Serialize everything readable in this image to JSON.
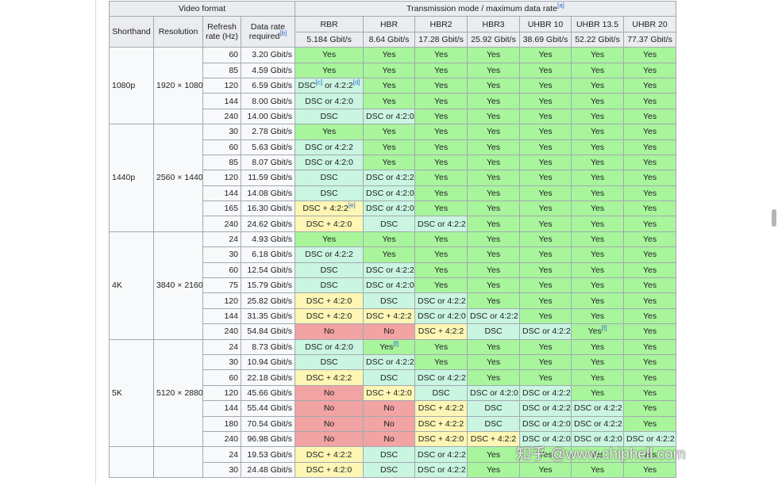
{
  "table": {
    "header": {
      "video_format": "Video format",
      "transmission": [
        "Transmission mode / maximum data rate",
        "[a]"
      ],
      "shorthand": "Shorthand",
      "resolution": "Resolution",
      "refresh": "Refresh rate (Hz)",
      "data_rate": [
        "Data rate required",
        "[b]"
      ],
      "modes": [
        "RBR",
        "HBR",
        "HBR2",
        "HBR3",
        "UHBR 10",
        "UHBR 13.5",
        "UHBR 20"
      ],
      "rates": [
        "5.184 Gbit/s",
        "8.64 Gbit/s",
        "17.28 Gbit/s",
        "25.92 Gbit/s",
        "38.69 Gbit/s",
        "52.22 Gbit/s",
        "77.37 Gbit/s"
      ]
    },
    "groups": [
      {
        "shorthand": "1080p",
        "resolution": "1920 × 1080",
        "rows": [
          {
            "refresh": 60,
            "rate": "3.20 Gbit/s",
            "cells": [
              "Yes",
              "Yes",
              "Yes",
              "Yes",
              "Yes",
              "Yes",
              "Yes"
            ]
          },
          {
            "refresh": 85,
            "rate": "4.59 Gbit/s",
            "cells": [
              "Yes",
              "Yes",
              "Yes",
              "Yes",
              "Yes",
              "Yes",
              "Yes"
            ]
          },
          {
            "refresh": 120,
            "rate": "6.59 Gbit/s",
            "cells": [
              [
                "DSC",
                "[c]",
                " or 4:2:2",
                "[d]"
              ],
              "Yes",
              "Yes",
              "Yes",
              "Yes",
              "Yes",
              "Yes"
            ]
          },
          {
            "refresh": 144,
            "rate": "8.00 Gbit/s",
            "cells": [
              "DSC or 4:2:0",
              "Yes",
              "Yes",
              "Yes",
              "Yes",
              "Yes",
              "Yes"
            ]
          },
          {
            "refresh": 240,
            "rate": "14.00 Gbit/s",
            "cells": [
              "DSC",
              "DSC or 4:2:0",
              "Yes",
              "Yes",
              "Yes",
              "Yes",
              "Yes"
            ]
          }
        ]
      },
      {
        "shorthand": "1440p",
        "resolution": "2560 × 1440",
        "rows": [
          {
            "refresh": 30,
            "rate": "2.78 Gbit/s",
            "cells": [
              "Yes",
              "Yes",
              "Yes",
              "Yes",
              "Yes",
              "Yes",
              "Yes"
            ]
          },
          {
            "refresh": 60,
            "rate": "5.63 Gbit/s",
            "cells": [
              "DSC or 4:2:2",
              "Yes",
              "Yes",
              "Yes",
              "Yes",
              "Yes",
              "Yes"
            ]
          },
          {
            "refresh": 85,
            "rate": "8.07 Gbit/s",
            "cells": [
              "DSC or 4:2:0",
              "Yes",
              "Yes",
              "Yes",
              "Yes",
              "Yes",
              "Yes"
            ]
          },
          {
            "refresh": 120,
            "rate": "11.59 Gbit/s",
            "cells": [
              "DSC",
              "DSC or 4:2:2",
              "Yes",
              "Yes",
              "Yes",
              "Yes",
              "Yes"
            ]
          },
          {
            "refresh": 144,
            "rate": "14.08 Gbit/s",
            "cells": [
              "DSC",
              "DSC or 4:2:0",
              "Yes",
              "Yes",
              "Yes",
              "Yes",
              "Yes"
            ]
          },
          {
            "refresh": 165,
            "rate": "16.30 Gbit/s",
            "cells": [
              [
                "DSC + 4:2:2",
                "[e]"
              ],
              "DSC or 4:2:0",
              "Yes",
              "Yes",
              "Yes",
              "Yes",
              "Yes"
            ]
          },
          {
            "refresh": 240,
            "rate": "24.62 Gbit/s",
            "cells": [
              "DSC + 4:2:0",
              "DSC",
              "DSC or 4:2:2",
              "Yes",
              "Yes",
              "Yes",
              "Yes"
            ]
          }
        ]
      },
      {
        "shorthand": "4K",
        "resolution": "3840 × 2160",
        "rows": [
          {
            "refresh": 24,
            "rate": "4.93 Gbit/s",
            "cells": [
              "Yes",
              "Yes",
              "Yes",
              "Yes",
              "Yes",
              "Yes",
              "Yes"
            ]
          },
          {
            "refresh": 30,
            "rate": "6.18 Gbit/s",
            "cells": [
              "DSC or 4:2:2",
              "Yes",
              "Yes",
              "Yes",
              "Yes",
              "Yes",
              "Yes"
            ]
          },
          {
            "refresh": 60,
            "rate": "12.54 Gbit/s",
            "cells": [
              "DSC",
              "DSC or 4:2:2",
              "Yes",
              "Yes",
              "Yes",
              "Yes",
              "Yes"
            ]
          },
          {
            "refresh": 75,
            "rate": "15.79 Gbit/s",
            "cells": [
              "DSC",
              "DSC or 4:2:0",
              "Yes",
              "Yes",
              "Yes",
              "Yes",
              "Yes"
            ]
          },
          {
            "refresh": 120,
            "rate": "25.82 Gbit/s",
            "cells": [
              "DSC + 4:2:0",
              "DSC",
              "DSC or 4:2:2",
              "Yes",
              "Yes",
              "Yes",
              "Yes"
            ]
          },
          {
            "refresh": 144,
            "rate": "31.35 Gbit/s",
            "cells": [
              "DSC + 4:2:0",
              "DSC + 4:2:2",
              "DSC or 4:2:0",
              "DSC or 4:2:2",
              "Yes",
              "Yes",
              "Yes"
            ]
          },
          {
            "refresh": 240,
            "rate": "54.84 Gbit/s",
            "cells": [
              "No",
              "No",
              "DSC + 4:2:2",
              "DSC",
              "DSC or 4:2:2",
              [
                "Yes",
                "[f]"
              ],
              "Yes"
            ]
          }
        ]
      },
      {
        "shorthand": "5K",
        "resolution": "5120 × 2880",
        "rows": [
          {
            "refresh": 24,
            "rate": "8.73 Gbit/s",
            "cells": [
              "DSC or 4:2:0",
              [
                "Yes",
                "[f]"
              ],
              "Yes",
              "Yes",
              "Yes",
              "Yes",
              "Yes"
            ]
          },
          {
            "refresh": 30,
            "rate": "10.94 Gbit/s",
            "cells": [
              "DSC",
              "DSC or 4:2:2",
              "Yes",
              "Yes",
              "Yes",
              "Yes",
              "Yes"
            ]
          },
          {
            "refresh": 60,
            "rate": "22.18 Gbit/s",
            "cells": [
              "DSC + 4:2:2",
              "DSC",
              "DSC or 4:2:2",
              "Yes",
              "Yes",
              "Yes",
              "Yes"
            ]
          },
          {
            "refresh": 120,
            "rate": "45.66 Gbit/s",
            "cells": [
              "No",
              "DSC + 4:2:0",
              "DSC",
              "DSC or 4:2:0",
              "DSC or 4:2:2",
              "Yes",
              "Yes"
            ]
          },
          {
            "refresh": 144,
            "rate": "55.44 Gbit/s",
            "cells": [
              "No",
              "No",
              "DSC + 4:2:2",
              "DSC",
              "DSC or 4:2:2",
              "DSC or 4:2:2",
              "Yes"
            ]
          },
          {
            "refresh": 180,
            "rate": "70.54 Gbit/s",
            "cells": [
              "No",
              "No",
              "DSC + 4:2:2",
              "DSC",
              "DSC or 4:2:0",
              "DSC or 4:2:2",
              "Yes"
            ]
          },
          {
            "refresh": 240,
            "rate": "96.98 Gbit/s",
            "cells": [
              "No",
              "No",
              "DSC + 4:2:0",
              "DSC + 4:2:2",
              "DSC or 4:2:0",
              "DSC or 4:2:0",
              "DSC or 4:2:2"
            ]
          }
        ]
      },
      {
        "rows": [
          {
            "refresh": 24,
            "rate": "19.53 Gbit/s",
            "cells": [
              "DSC + 4:2:2",
              "DSC",
              "DSC or 4:2:2",
              "Yes",
              "Yes",
              "Yes",
              "Yes"
            ]
          },
          {
            "refresh": 30,
            "rate": "24.48 Gbit/s",
            "cells": [
              "DSC + 4:2:0",
              "DSC",
              "DSC or 4:2:2",
              "Yes",
              "Yes",
              "Yes",
              "Yes"
            ]
          }
        ]
      }
    ]
  },
  "watermark": "知乎 @www.chiphell.com"
}
